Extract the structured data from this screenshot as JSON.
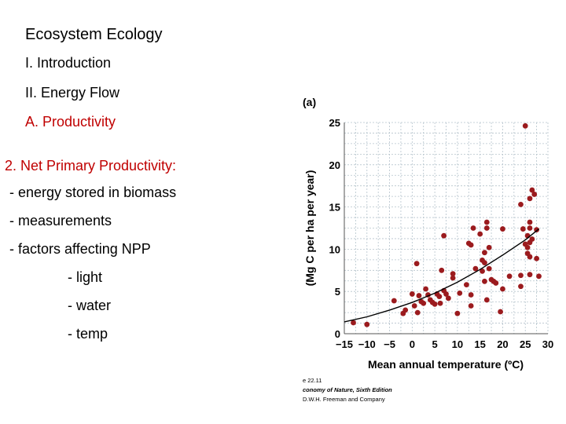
{
  "slide": {
    "title": "Ecosystem Ecology",
    "items": {
      "intro": "I. Introduction",
      "energy_flow": "II. Energy Flow",
      "productivity": "A. Productivity",
      "npp": "2. Net Primary Productivity:",
      "b1": "- energy stored in biomass",
      "b2": "- measurements",
      "b3": "- factors affecting NPP",
      "s1": "- light",
      "s2": "- water",
      "s3": "- temp"
    },
    "colors": {
      "accent": "#c00000",
      "points": "#9b1b1e",
      "grid": "#b5c3cc",
      "curve": "#000000"
    }
  },
  "chart_data": {
    "type": "scatter",
    "panel_label": "(a)",
    "xlabel": "Mean annual temperature (ºC)",
    "ylabel": "(Mg C per ha per year)",
    "xlim": [
      -15,
      30
    ],
    "ylim": [
      0,
      25
    ],
    "xticks": [
      -15,
      -10,
      -5,
      0,
      5,
      10,
      15,
      20,
      25,
      30
    ],
    "xtick_labels": [
      "−15",
      "−10",
      "−5",
      "0",
      "5",
      "10",
      "15",
      "20",
      "25",
      "30"
    ],
    "yticks": [
      0,
      5,
      10,
      15,
      20,
      25
    ],
    "grid": true,
    "credit": {
      "line1": "e 22.11",
      "line2": "conomy of Nature, Sixth Edition",
      "line3": "D.W.H. Freeman and Company"
    },
    "points": [
      {
        "x": -13,
        "y": 1.3
      },
      {
        "x": -10,
        "y": 1.1
      },
      {
        "x": -4,
        "y": 3.9
      },
      {
        "x": -2,
        "y": 2.4
      },
      {
        "x": -1.5,
        "y": 2.8
      },
      {
        "x": 0,
        "y": 4.7
      },
      {
        "x": 0.5,
        "y": 3.3
      },
      {
        "x": 1,
        "y": 8.3
      },
      {
        "x": 1.2,
        "y": 2.5
      },
      {
        "x": 1.5,
        "y": 4.5
      },
      {
        "x": 2,
        "y": 3.8
      },
      {
        "x": 2.5,
        "y": 3.6
      },
      {
        "x": 3,
        "y": 5.3
      },
      {
        "x": 3.5,
        "y": 4.6
      },
      {
        "x": 4,
        "y": 4.0
      },
      {
        "x": 4.5,
        "y": 3.7
      },
      {
        "x": 5,
        "y": 3.5
      },
      {
        "x": 5.5,
        "y": 4.7
      },
      {
        "x": 6,
        "y": 4.4
      },
      {
        "x": 6.2,
        "y": 3.6
      },
      {
        "x": 6.5,
        "y": 7.5
      },
      {
        "x": 7,
        "y": 5.1
      },
      {
        "x": 7,
        "y": 11.6
      },
      {
        "x": 7.5,
        "y": 4.7
      },
      {
        "x": 8,
        "y": 4.2
      },
      {
        "x": 9,
        "y": 7.1
      },
      {
        "x": 9,
        "y": 6.6
      },
      {
        "x": 10,
        "y": 2.4
      },
      {
        "x": 10.5,
        "y": 4.8
      },
      {
        "x": 12,
        "y": 5.8
      },
      {
        "x": 12.5,
        "y": 10.7
      },
      {
        "x": 13,
        "y": 3.3
      },
      {
        "x": 13,
        "y": 4.6
      },
      {
        "x": 13,
        "y": 10.5
      },
      {
        "x": 13.5,
        "y": 12.5
      },
      {
        "x": 14,
        "y": 7.7
      },
      {
        "x": 15,
        "y": 11.8
      },
      {
        "x": 15.5,
        "y": 7.4
      },
      {
        "x": 15.5,
        "y": 8.7
      },
      {
        "x": 16,
        "y": 9.6
      },
      {
        "x": 16,
        "y": 6.2
      },
      {
        "x": 16,
        "y": 8.4
      },
      {
        "x": 16.5,
        "y": 12.5
      },
      {
        "x": 16.5,
        "y": 13.2
      },
      {
        "x": 16.5,
        "y": 4.0
      },
      {
        "x": 17,
        "y": 10.2
      },
      {
        "x": 17,
        "y": 7.7
      },
      {
        "x": 17.5,
        "y": 6.4
      },
      {
        "x": 18,
        "y": 6.2
      },
      {
        "x": 18.5,
        "y": 6.0
      },
      {
        "x": 19.5,
        "y": 2.6
      },
      {
        "x": 20,
        "y": 5.3
      },
      {
        "x": 20,
        "y": 12.4
      },
      {
        "x": 21.5,
        "y": 6.8
      },
      {
        "x": 24,
        "y": 6.9
      },
      {
        "x": 24,
        "y": 5.6
      },
      {
        "x": 24,
        "y": 15.3
      },
      {
        "x": 24.5,
        "y": 12.4
      },
      {
        "x": 25,
        "y": 24.6
      },
      {
        "x": 25,
        "y": 10.6
      },
      {
        "x": 25.5,
        "y": 11.6
      },
      {
        "x": 25.5,
        "y": 10.2
      },
      {
        "x": 25.5,
        "y": 9.5
      },
      {
        "x": 26,
        "y": 16.0
      },
      {
        "x": 26,
        "y": 13.2
      },
      {
        "x": 26,
        "y": 12.5
      },
      {
        "x": 26,
        "y": 10.8
      },
      {
        "x": 26,
        "y": 9.1
      },
      {
        "x": 26,
        "y": 7.0
      },
      {
        "x": 26.5,
        "y": 17.0
      },
      {
        "x": 26.5,
        "y": 11.2
      },
      {
        "x": 27,
        "y": 16.5
      },
      {
        "x": 27.5,
        "y": 12.3
      },
      {
        "x": 27.5,
        "y": 8.9
      },
      {
        "x": 28,
        "y": 6.8
      }
    ],
    "fit_curve": [
      {
        "x": -15,
        "y": 1.4
      },
      {
        "x": -10,
        "y": 2.0
      },
      {
        "x": -5,
        "y": 2.8
      },
      {
        "x": 0,
        "y": 3.7
      },
      {
        "x": 5,
        "y": 4.8
      },
      {
        "x": 10,
        "y": 6.1
      },
      {
        "x": 15,
        "y": 7.6
      },
      {
        "x": 20,
        "y": 9.3
      },
      {
        "x": 25,
        "y": 11.1
      },
      {
        "x": 28,
        "y": 12.4
      }
    ]
  }
}
